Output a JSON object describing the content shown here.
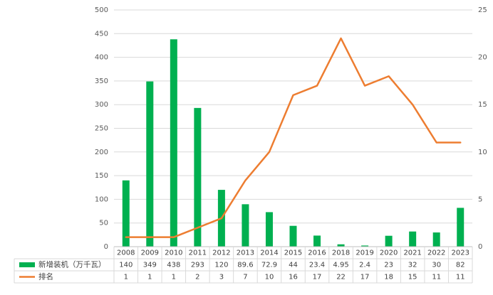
{
  "chart_data": {
    "type": "bar",
    "categories": [
      "2008",
      "2009",
      "2010",
      "2011",
      "2012",
      "2013",
      "2014",
      "2015",
      "2016",
      "2018",
      "2019",
      "2020",
      "2021",
      "2022",
      "2023"
    ],
    "series": [
      {
        "name": "新增装机（万千瓦）",
        "type": "bar",
        "axis": "left",
        "color": "#00b050",
        "values": [
          140,
          349,
          438,
          293,
          120,
          89.6,
          72.9,
          44,
          23.4,
          4.95,
          2.4,
          23,
          32,
          30,
          82
        ],
        "labels": [
          "140",
          "349",
          "438",
          "293",
          "120",
          "89.6",
          "72.9",
          "44",
          "23.4",
          "4.95",
          "2.4",
          "23",
          "32",
          "30",
          "82"
        ]
      },
      {
        "name": "排名",
        "type": "line",
        "axis": "right",
        "color": "#ed7d31",
        "values": [
          1,
          1,
          1,
          2,
          3,
          7,
          10,
          16,
          17,
          22,
          17,
          18,
          15,
          11,
          11
        ],
        "labels": [
          "1",
          "1",
          "1",
          "2",
          "3",
          "7",
          "10",
          "16",
          "17",
          "22",
          "17",
          "18",
          "15",
          "11",
          "11"
        ]
      }
    ],
    "y_left": {
      "min": 0,
      "max": 500,
      "ticks": [
        "0",
        "50",
        "100",
        "150",
        "200",
        "250",
        "300",
        "350",
        "400",
        "450",
        "500"
      ]
    },
    "y_right": {
      "min": 0,
      "max": 25,
      "ticks": [
        "0",
        "5",
        "10",
        "15",
        "20",
        "25"
      ]
    },
    "grid": true,
    "legend": "data-table",
    "title": "",
    "xlabel": "",
    "ylabel": ""
  }
}
